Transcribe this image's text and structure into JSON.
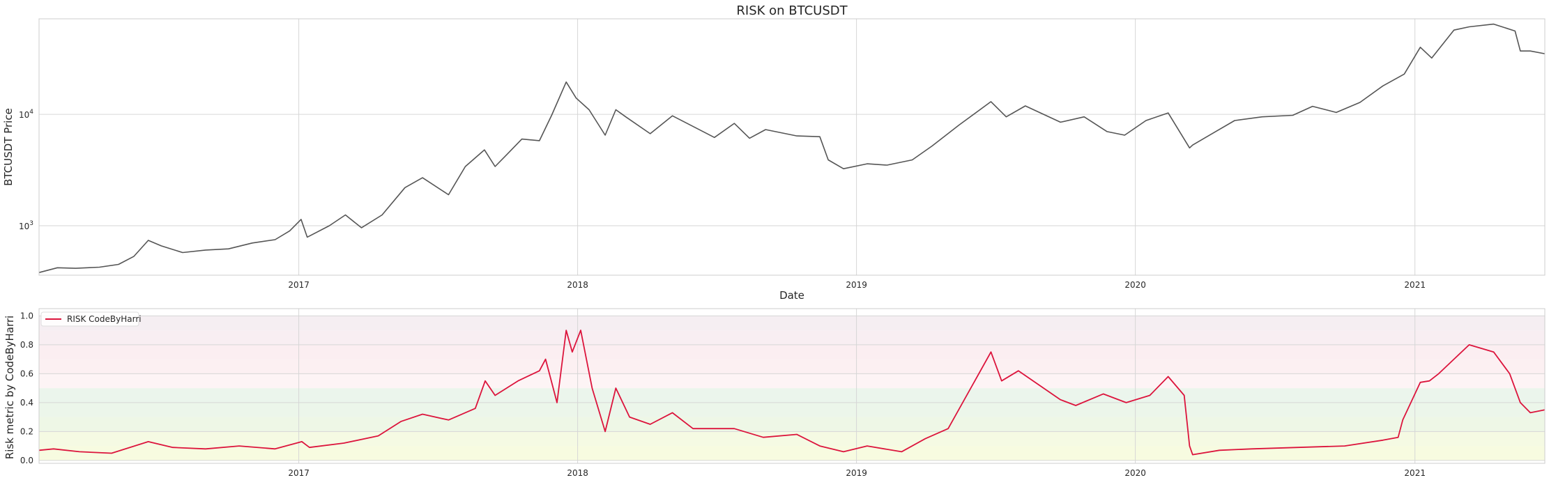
{
  "chart_data": [
    {
      "type": "line",
      "title": "RISK on BTCUSDT",
      "xlabel": "Date",
      "ylabel": "BTCUSDT Price",
      "yscale": "log",
      "ylim": [
        360,
        72000
      ],
      "xlim": [
        "2016-01-27",
        "2021-06-20"
      ],
      "x_ticks": [
        "2017",
        "2018",
        "2019",
        "2020",
        "2021"
      ],
      "y_ticks": [
        {
          "value": 1000,
          "base": "10",
          "exp": "3"
        },
        {
          "value": 10000,
          "base": "10",
          "exp": "4"
        }
      ],
      "grid": true,
      "series": [
        {
          "color": "#555555",
          "x": [
            "2016-01-27",
            "2016-02-20",
            "2016-03-15",
            "2016-04-15",
            "2016-05-10",
            "2016-05-30",
            "2016-06-18",
            "2016-07-05",
            "2016-08-02",
            "2016-09-01",
            "2016-10-01",
            "2016-11-01",
            "2016-12-01",
            "2016-12-20",
            "2017-01-04",
            "2017-01-12",
            "2017-02-10",
            "2017-03-03",
            "2017-03-24",
            "2017-04-20",
            "2017-05-20",
            "2017-06-12",
            "2017-07-16",
            "2017-08-07",
            "2017-09-01",
            "2017-09-15",
            "2017-10-01",
            "2017-10-20",
            "2017-11-12",
            "2017-11-28",
            "2017-12-17",
            "2017-12-30",
            "2018-01-16",
            "2018-02-06",
            "2018-02-20",
            "2018-03-05",
            "2018-04-06",
            "2018-05-05",
            "2018-06-29",
            "2018-07-25",
            "2018-08-14",
            "2018-09-04",
            "2018-10-15",
            "2018-11-14",
            "2018-11-25",
            "2018-12-15",
            "2019-01-15",
            "2019-02-10",
            "2019-03-15",
            "2019-04-10",
            "2019-05-15",
            "2019-06-26",
            "2019-07-16",
            "2019-08-10",
            "2019-09-25",
            "2019-10-26",
            "2019-11-25",
            "2019-12-18",
            "2020-01-15",
            "2020-02-13",
            "2020-03-12",
            "2020-03-16",
            "2020-04-15",
            "2020-05-10",
            "2020-06-15",
            "2020-07-25",
            "2020-08-20",
            "2020-09-20",
            "2020-10-21",
            "2020-11-20",
            "2020-12-18",
            "2021-01-08",
            "2021-01-23",
            "2021-02-21",
            "2021-03-13",
            "2021-04-14",
            "2021-05-12",
            "2021-05-19",
            "2021-06-01",
            "2021-06-20"
          ],
          "values": [
            380,
            420,
            415,
            425,
            450,
            530,
            740,
            660,
            575,
            605,
            620,
            700,
            750,
            900,
            1140,
            790,
            1000,
            1250,
            960,
            1250,
            2200,
            2700,
            1900,
            3400,
            4800,
            3400,
            4400,
            6000,
            5800,
            9800,
            19500,
            14000,
            11000,
            6500,
            11000,
            9500,
            6700,
            9700,
            6200,
            8300,
            6100,
            7300,
            6400,
            6300,
            3900,
            3250,
            3600,
            3500,
            3900,
            5200,
            8000,
            13000,
            9500,
            11900,
            8500,
            9500,
            7000,
            6500,
            8800,
            10300,
            5000,
            5300,
            7000,
            8800,
            9500,
            9800,
            11800,
            10400,
            12800,
            18000,
            23000,
            40000,
            32000,
            57000,
            61000,
            64500,
            56000,
            37000,
            37000,
            35000
          ]
        }
      ]
    },
    {
      "type": "line",
      "xlabel": "",
      "ylabel": "Risk metric by CodeByHarri",
      "ylim": [
        -0.02,
        1.05
      ],
      "xlim": [
        "2016-01-27",
        "2021-06-20"
      ],
      "x_ticks": [
        "2017",
        "2018",
        "2019",
        "2020",
        "2021"
      ],
      "y_ticks": [
        "0.0",
        "0.2",
        "0.4",
        "0.6",
        "0.8",
        "1.0"
      ],
      "grid": true,
      "legend": "upper-left",
      "bands": [
        {
          "from": 0.0,
          "to": 0.1,
          "color": "#f7fbe0"
        },
        {
          "from": 0.1,
          "to": 0.2,
          "color": "#f5fae3"
        },
        {
          "from": 0.2,
          "to": 0.3,
          "color": "#eef7e6"
        },
        {
          "from": 0.3,
          "to": 0.4,
          "color": "#ecf6ea"
        },
        {
          "from": 0.4,
          "to": 0.5,
          "color": "#ebf5ec"
        },
        {
          "from": 0.5,
          "to": 0.6,
          "color": "#fdf4f5"
        },
        {
          "from": 0.6,
          "to": 0.7,
          "color": "#fcf0f2"
        },
        {
          "from": 0.7,
          "to": 0.8,
          "color": "#fbeef1"
        },
        {
          "from": 0.8,
          "to": 0.9,
          "color": "#f8eef2"
        },
        {
          "from": 0.9,
          "to": 1.0,
          "color": "#f5eef2"
        }
      ],
      "series": [
        {
          "name": "RISK CodeByHarri",
          "color": "#dc143c",
          "x": [
            "2016-01-27",
            "2016-02-15",
            "2016-03-20",
            "2016-05-01",
            "2016-06-18",
            "2016-07-20",
            "2016-09-01",
            "2016-10-15",
            "2016-12-01",
            "2017-01-05",
            "2017-01-15",
            "2017-03-01",
            "2017-04-15",
            "2017-05-15",
            "2017-06-12",
            "2017-07-16",
            "2017-08-20",
            "2017-09-02",
            "2017-09-15",
            "2017-10-15",
            "2017-11-12",
            "2017-11-20",
            "2017-11-25",
            "2017-12-05",
            "2017-12-17",
            "2017-12-25",
            "2018-01-05",
            "2018-01-20",
            "2018-02-06",
            "2018-02-20",
            "2018-03-10",
            "2018-04-06",
            "2018-05-05",
            "2018-06-01",
            "2018-07-25",
            "2018-09-01",
            "2018-10-15",
            "2018-11-14",
            "2018-12-15",
            "2019-01-15",
            "2019-03-01",
            "2019-04-01",
            "2019-05-01",
            "2019-06-26",
            "2019-07-10",
            "2019-08-01",
            "2019-09-25",
            "2019-10-15",
            "2019-11-20",
            "2019-12-20",
            "2020-01-20",
            "2020-02-13",
            "2020-03-05",
            "2020-03-12",
            "2020-03-16",
            "2020-04-20",
            "2020-06-01",
            "2020-08-01",
            "2020-10-01",
            "2020-11-20",
            "2020-12-10",
            "2020-12-16",
            "2021-01-08",
            "2021-01-20",
            "2021-02-01",
            "2021-02-21",
            "2021-03-13",
            "2021-04-14",
            "2021-05-05",
            "2021-05-19",
            "2021-06-01",
            "2021-06-20"
          ],
          "values": [
            0.07,
            0.08,
            0.06,
            0.05,
            0.13,
            0.09,
            0.08,
            0.1,
            0.08,
            0.13,
            0.09,
            0.12,
            0.17,
            0.27,
            0.32,
            0.28,
            0.36,
            0.55,
            0.45,
            0.55,
            0.62,
            0.7,
            0.6,
            0.4,
            0.9,
            0.75,
            0.9,
            0.5,
            0.2,
            0.5,
            0.3,
            0.25,
            0.33,
            0.22,
            0.22,
            0.16,
            0.18,
            0.1,
            0.06,
            0.1,
            0.06,
            0.15,
            0.22,
            0.75,
            0.55,
            0.62,
            0.42,
            0.38,
            0.46,
            0.4,
            0.45,
            0.58,
            0.45,
            0.1,
            0.04,
            0.07,
            0.08,
            0.09,
            0.1,
            0.14,
            0.16,
            0.28,
            0.54,
            0.55,
            0.6,
            0.7,
            0.8,
            0.75,
            0.6,
            0.4,
            0.33,
            0.35
          ]
        }
      ]
    }
  ]
}
